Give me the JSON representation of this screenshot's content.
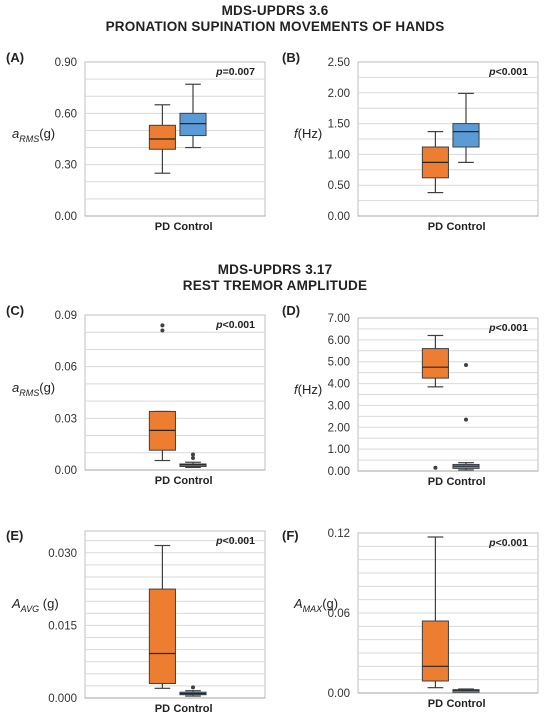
{
  "sections": [
    {
      "line1": "MDS-UPDRS 3.6",
      "line2": "PRONATION SUPINATION MOVEMENTS OF HANDS"
    },
    {
      "line1": "MDS-UPDRS 3.17",
      "line2": "REST TREMOR AMPLITUDE"
    }
  ],
  "colors": {
    "pd": "#ED7D31",
    "control": "#5B9BD5",
    "control_dark": "#2F3B4C",
    "grid": "#D9D9D9",
    "axis": "#595959"
  },
  "chart_data": [
    {
      "type": "box",
      "panel": "(A)",
      "ylabel_main": "a",
      "ylabel_sub": "RMS",
      "ylabel_unit": "(g)",
      "annotation_prefix": "p",
      "annotation": "=0.007",
      "categories": [
        "PD",
        "Control"
      ],
      "yticks": [
        "0.00",
        "0.30",
        "0.60",
        "0.90"
      ],
      "ylim": [
        0,
        0.9
      ],
      "grid_step": 0.1,
      "boxes": [
        {
          "name": "PD",
          "min": 0.25,
          "q1": 0.39,
          "median": 0.45,
          "q3": 0.53,
          "max": 0.65,
          "outliers": []
        },
        {
          "name": "Control",
          "min": 0.4,
          "q1": 0.47,
          "median": 0.54,
          "q3": 0.6,
          "max": 0.77,
          "outliers": []
        }
      ]
    },
    {
      "type": "box",
      "panel": "(B)",
      "ylabel_main": "f",
      "ylabel_sub": "",
      "ylabel_unit": "(Hz)",
      "annotation_prefix": "p",
      "annotation": "<0.001",
      "categories": [
        "PD",
        "Control"
      ],
      "yticks": [
        "0.00",
        "0.50",
        "1.00",
        "1.50",
        "2.00",
        "2.50"
      ],
      "ylim": [
        0,
        2.5
      ],
      "grid_step": 0.25,
      "boxes": [
        {
          "name": "PD",
          "min": 0.38,
          "q1": 0.62,
          "median": 0.87,
          "q3": 1.12,
          "max": 1.37,
          "outliers": []
        },
        {
          "name": "Control",
          "min": 0.87,
          "q1": 1.12,
          "median": 1.37,
          "q3": 1.5,
          "max": 1.99,
          "outliers": []
        }
      ]
    },
    {
      "type": "box",
      "panel": "(C)",
      "ylabel_main": "a",
      "ylabel_sub": "RMS",
      "ylabel_unit": "(g)",
      "annotation_prefix": "p",
      "annotation": "<0.001",
      "categories": [
        "PD",
        "Control"
      ],
      "yticks": [
        "0.00",
        "0.03",
        "0.06",
        "0.09"
      ],
      "ylim": [
        0,
        0.09
      ],
      "grid_step": 0.01,
      "boxes": [
        {
          "name": "PD",
          "min": 0.0055,
          "q1": 0.0115,
          "median": 0.023,
          "q3": 0.034,
          "max": 0.034,
          "outliers": [
            0.081,
            0.084
          ]
        },
        {
          "name": "Control",
          "min": 0.0015,
          "q1": 0.0025,
          "median": 0.003,
          "q3": 0.0035,
          "max": 0.0045,
          "outliers": [
            0.007,
            0.009
          ]
        }
      ]
    },
    {
      "type": "box",
      "panel": "(D)",
      "ylabel_main": "f",
      "ylabel_sub": "",
      "ylabel_unit": "(Hz)",
      "annotation_prefix": "p",
      "annotation": "<0.001",
      "categories": [
        "PD",
        "Control"
      ],
      "yticks": [
        "0.00",
        "1.00",
        "2.00",
        "3.00",
        "4.00",
        "5.00",
        "6.00",
        "7.00"
      ],
      "ylim": [
        0,
        7
      ],
      "grid_step": 0.5,
      "boxes": [
        {
          "name": "PD",
          "min": 3.85,
          "q1": 4.25,
          "median": 4.75,
          "q3": 5.6,
          "max": 6.2,
          "outliers": [
            0.15
          ]
        },
        {
          "name": "Control",
          "min": 0.05,
          "q1": 0.12,
          "median": 0.22,
          "q3": 0.3,
          "max": 0.38,
          "outliers": [
            2.35,
            4.85
          ]
        }
      ]
    },
    {
      "type": "box",
      "panel": "(E)",
      "ylabel_main": "A",
      "ylabel_sub": "AVG",
      "ylabel_unit": " (g)",
      "annotation_prefix": "p",
      "annotation": "<0.001",
      "categories": [
        "PD",
        "Control"
      ],
      "yticks": [
        "0.000",
        "0.015",
        "0.030"
      ],
      "ylim": [
        0,
        0.0345
      ],
      "grid_step": 0.0025,
      "boxes": [
        {
          "name": "PD",
          "min": 0.002,
          "q1": 0.003,
          "median": 0.0092,
          "q3": 0.0225,
          "max": 0.0315,
          "outliers": []
        },
        {
          "name": "Control",
          "min": 0.0004,
          "q1": 0.0007,
          "median": 0.0009,
          "q3": 0.0012,
          "max": 0.0015,
          "outliers": [
            0.0022
          ]
        }
      ]
    },
    {
      "type": "box",
      "panel": "(F)",
      "ylabel_main": "A",
      "ylabel_sub": "MAX",
      "ylabel_unit": "(g)",
      "annotation_prefix": "p",
      "annotation": "<0.001",
      "categories": [
        "PD",
        "Control"
      ],
      "yticks": [
        "0.00",
        "0.06",
        "0.12"
      ],
      "ylim": [
        0,
        0.12
      ],
      "grid_step": 0.01,
      "boxes": [
        {
          "name": "PD",
          "min": 0.004,
          "q1": 0.009,
          "median": 0.02,
          "q3": 0.054,
          "max": 0.117,
          "outliers": []
        },
        {
          "name": "Control",
          "min": 0.0015,
          "q1": 0.0015,
          "median": 0.002,
          "q3": 0.0025,
          "max": 0.003,
          "outliers": []
        }
      ]
    }
  ]
}
